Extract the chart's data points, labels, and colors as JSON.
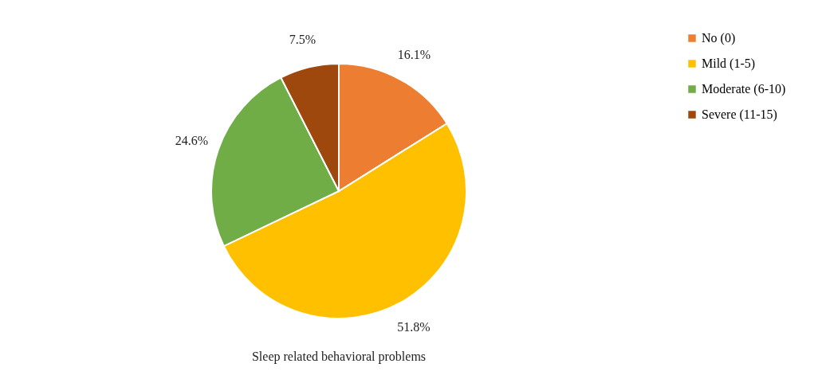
{
  "chart_data": {
    "type": "pie",
    "title": "Sleep related behavioral problems",
    "categories": [
      "No (0)",
      "Mild (1-5)",
      "Moderate (6-10)",
      "Severe (11-15)"
    ],
    "values": [
      16.1,
      51.8,
      24.6,
      7.5
    ],
    "colors": [
      "#ed7d31",
      "#ffc000",
      "#70ad47",
      "#9e480e"
    ],
    "value_labels": [
      "16.1%",
      "51.8%",
      "24.6%",
      "7.5%"
    ],
    "legend": "right"
  }
}
